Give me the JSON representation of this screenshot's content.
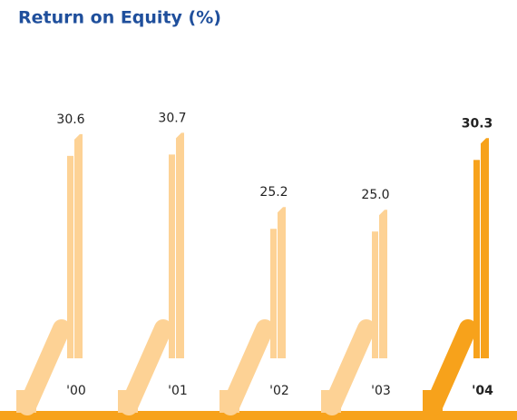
{
  "chart_data": {
    "type": "bar",
    "title": "Return on Equity (%)",
    "categories": [
      "'00",
      "'01",
      "'02",
      "'03",
      "'04"
    ],
    "values": [
      30.6,
      30.7,
      25.2,
      25.0,
      30.3
    ],
    "value_labels": [
      "30.6",
      "30.7",
      "25.2",
      "25.0",
      "30.3"
    ],
    "colors": [
      "#fdd295",
      "#fdd295",
      "#fdd295",
      "#fdd295",
      "#f7a21b"
    ],
    "base_color": "#f7a21b",
    "ylim": [
      14,
      32
    ]
  }
}
